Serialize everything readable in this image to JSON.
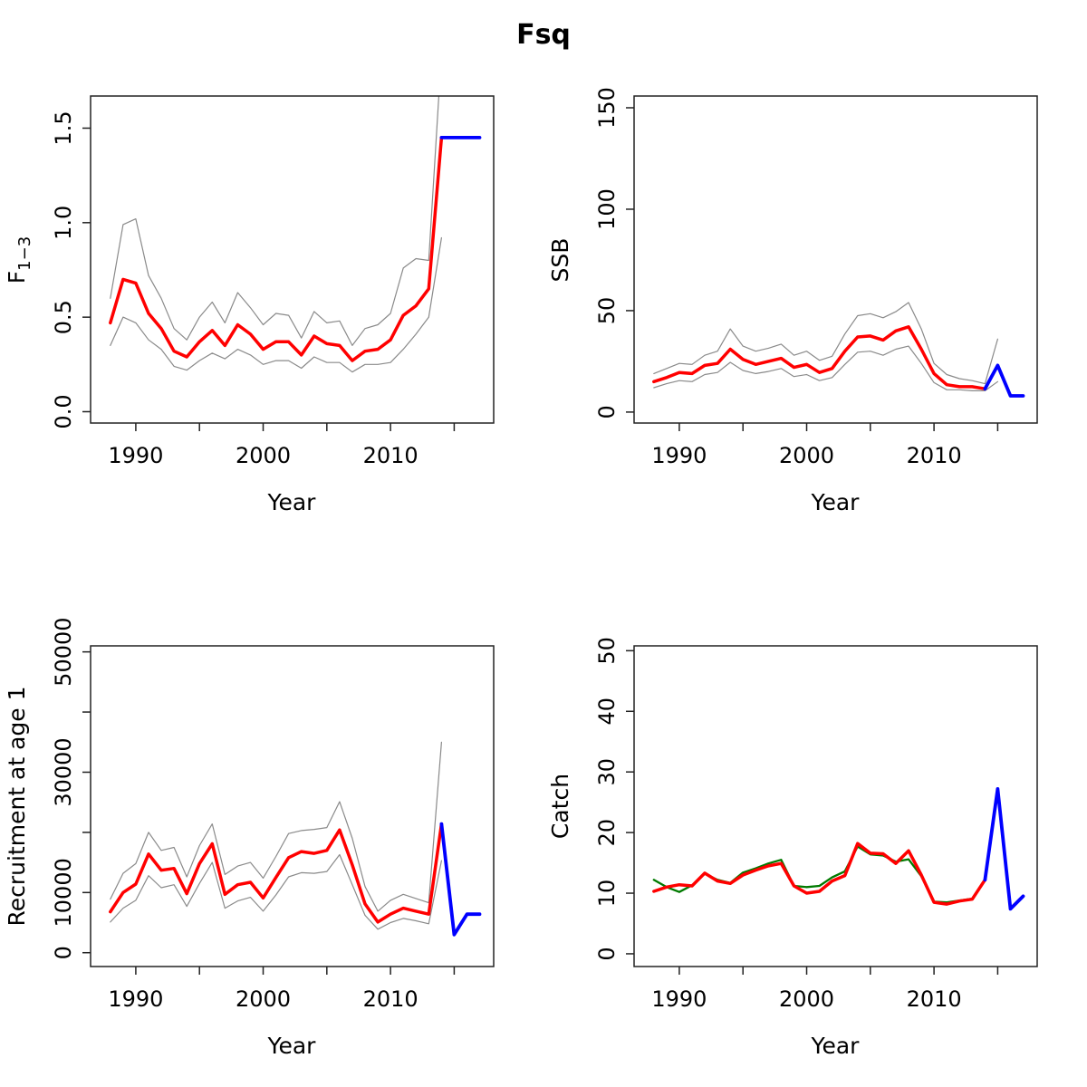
{
  "title": "Fsq",
  "colors": {
    "red": "#ff0000",
    "blue": "#0000ff",
    "green": "#007a00",
    "grey": "#8a8a8a",
    "axis": "#222222",
    "text": "#000000",
    "background": "#ffffff"
  },
  "years_hist": [
    1988,
    1989,
    1990,
    1991,
    1992,
    1993,
    1994,
    1995,
    1996,
    1997,
    1998,
    1999,
    2000,
    2001,
    2002,
    2003,
    2004,
    2005,
    2006,
    2007,
    2008,
    2009,
    2010,
    2011,
    2012,
    2013,
    2014
  ],
  "years_fwd": [
    2014,
    2015,
    2016,
    2017
  ],
  "years_ci_ssb": [
    1988,
    1989,
    1990,
    1991,
    1992,
    1993,
    1994,
    1995,
    1996,
    1997,
    1998,
    1999,
    2000,
    2001,
    2002,
    2003,
    2004,
    2005,
    2006,
    2007,
    2008,
    2009,
    2010,
    2011,
    2012,
    2013,
    2014,
    2015
  ],
  "chart_data": [
    {
      "type": "line",
      "panel": "top-left",
      "xlabel": "Year",
      "ylabel": {
        "main": "F",
        "sub": "1−3"
      },
      "xlim": [
        1986.45,
        2018.1
      ],
      "ylim": [
        -0.06,
        1.67
      ],
      "grid": false,
      "legend": "none",
      "xticks": [
        {
          "v": 1990,
          "label": "1990"
        },
        {
          "v": 1995,
          "label": ""
        },
        {
          "v": 2000,
          "label": "2000"
        },
        {
          "v": 2005,
          "label": ""
        },
        {
          "v": 2010,
          "label": "2010"
        },
        {
          "v": 2015,
          "label": ""
        }
      ],
      "yticks": [
        {
          "v": 0,
          "label": "0.0"
        },
        {
          "v": 0.5,
          "label": "0.5"
        },
        {
          "v": 1.0,
          "label": "1.0"
        },
        {
          "v": 1.5,
          "label": "1.5"
        }
      ],
      "series": [
        {
          "name": "upper-ci",
          "color": "grey",
          "width": 1.2,
          "years_ref": "years_hist",
          "values": [
            0.6,
            0.99,
            1.02,
            0.72,
            0.6,
            0.44,
            0.38,
            0.5,
            0.58,
            0.47,
            0.63,
            0.55,
            0.46,
            0.52,
            0.51,
            0.39,
            0.53,
            0.47,
            0.48,
            0.35,
            0.44,
            0.46,
            0.52,
            0.76,
            0.81,
            0.8,
            1.9
          ]
        },
        {
          "name": "lower-ci",
          "color": "grey",
          "width": 1.2,
          "years_ref": "years_hist",
          "values": [
            0.35,
            0.5,
            0.47,
            0.38,
            0.33,
            0.24,
            0.22,
            0.27,
            0.31,
            0.28,
            0.33,
            0.3,
            0.25,
            0.27,
            0.27,
            0.23,
            0.29,
            0.26,
            0.26,
            0.21,
            0.25,
            0.25,
            0.26,
            0.33,
            0.41,
            0.5,
            0.92
          ]
        },
        {
          "name": "estimate",
          "color": "red",
          "width": 3.5,
          "years_ref": "years_hist",
          "values": [
            0.47,
            0.7,
            0.68,
            0.52,
            0.44,
            0.32,
            0.29,
            0.37,
            0.43,
            0.35,
            0.46,
            0.41,
            0.33,
            0.37,
            0.37,
            0.3,
            0.4,
            0.36,
            0.35,
            0.27,
            0.32,
            0.33,
            0.38,
            0.51,
            0.56,
            0.65,
            1.45
          ]
        },
        {
          "name": "forecast",
          "color": "blue",
          "width": 3.8,
          "years_ref": "years_fwd",
          "values": [
            1.45,
            1.45,
            1.45,
            1.45
          ]
        }
      ]
    },
    {
      "type": "line",
      "panel": "top-right",
      "xlabel": "Year",
      "ylabel": {
        "main": "SSB",
        "sub": ""
      },
      "xlim": [
        1986.45,
        2018.1
      ],
      "ylim": [
        -5.4,
        155.8
      ],
      "grid": false,
      "legend": "none",
      "xticks": [
        {
          "v": 1990,
          "label": "1990"
        },
        {
          "v": 1995,
          "label": ""
        },
        {
          "v": 2000,
          "label": "2000"
        },
        {
          "v": 2005,
          "label": ""
        },
        {
          "v": 2010,
          "label": "2010"
        },
        {
          "v": 2015,
          "label": ""
        }
      ],
      "yticks": [
        {
          "v": 0,
          "label": "0"
        },
        {
          "v": 50,
          "label": "50"
        },
        {
          "v": 100,
          "label": "100"
        },
        {
          "v": 150,
          "label": "150"
        }
      ],
      "series": [
        {
          "name": "upper-ci",
          "color": "grey",
          "width": 1.2,
          "years_ref": "years_ci_ssb",
          "values": [
            19,
            21.5,
            24,
            23.5,
            28,
            30,
            41,
            32.5,
            30,
            31.5,
            33.5,
            28,
            30,
            25.5,
            27.5,
            38.5,
            47.5,
            48.5,
            46.5,
            49.5,
            54,
            41,
            24,
            18.5,
            16.5,
            15.5,
            14,
            36
          ]
        },
        {
          "name": "lower-ci",
          "color": "grey",
          "width": 1.2,
          "years_ref": "years_ci_ssb",
          "values": [
            12,
            14,
            15.5,
            15,
            18.5,
            19.5,
            24.5,
            20.5,
            19,
            20,
            21.5,
            17.5,
            18.5,
            15.5,
            17,
            23.5,
            29.5,
            30,
            28,
            31,
            32.5,
            24,
            14.5,
            11,
            11,
            10.5,
            10.5,
            15
          ]
        },
        {
          "name": "estimate",
          "color": "red",
          "width": 3.5,
          "years_ref": "years_hist",
          "values": [
            15,
            17,
            19.5,
            19,
            23,
            24,
            31,
            26,
            23.5,
            25,
            26.5,
            22,
            23.5,
            19.5,
            21.5,
            30,
            37,
            37.5,
            35.5,
            40,
            42,
            31,
            19,
            13.5,
            12.5,
            12.5,
            11.5
          ]
        },
        {
          "name": "forecast",
          "color": "blue",
          "width": 3.8,
          "years_ref": "years_fwd",
          "values": [
            11.5,
            23,
            8,
            8
          ]
        }
      ]
    },
    {
      "type": "line",
      "panel": "bottom-left",
      "xlabel": "Year",
      "ylabel": {
        "main": "Recruitment at age 1",
        "sub": ""
      },
      "xlim": [
        1986.45,
        2018.1
      ],
      "ylim": [
        -2300,
        51000
      ],
      "grid": false,
      "legend": "none",
      "xticks": [
        {
          "v": 1990,
          "label": "1990"
        },
        {
          "v": 1995,
          "label": ""
        },
        {
          "v": 2000,
          "label": "2000"
        },
        {
          "v": 2005,
          "label": ""
        },
        {
          "v": 2010,
          "label": "2010"
        },
        {
          "v": 2015,
          "label": ""
        }
      ],
      "yticks": [
        {
          "v": 0,
          "label": "0"
        },
        {
          "v": 10000,
          "label": "10000"
        },
        {
          "v": 20000,
          "label": ""
        },
        {
          "v": 30000,
          "label": "30000"
        },
        {
          "v": 40000,
          "label": ""
        },
        {
          "v": 50000,
          "label": "50000"
        }
      ],
      "series": [
        {
          "name": "upper-ci",
          "color": "grey",
          "width": 1.2,
          "years_ref": "years_hist",
          "values": [
            8900,
            13200,
            14800,
            20000,
            17000,
            17500,
            12600,
            17800,
            21400,
            13000,
            14400,
            15000,
            12400,
            16000,
            19800,
            20300,
            20500,
            20800,
            25100,
            19000,
            11000,
            6900,
            8700,
            9700,
            9000,
            8300,
            35000
          ]
        },
        {
          "name": "lower-ci",
          "color": "grey",
          "width": 1.2,
          "years_ref": "years_hist",
          "values": [
            5100,
            7400,
            8700,
            12800,
            10800,
            11300,
            7700,
            11500,
            15000,
            7400,
            8600,
            9200,
            6900,
            9600,
            12600,
            13300,
            13200,
            13500,
            16300,
            11300,
            6200,
            3900,
            5000,
            5700,
            5300,
            4800,
            15300
          ]
        },
        {
          "name": "estimate",
          "color": "red",
          "width": 3.5,
          "years_ref": "years_hist",
          "values": [
            6800,
            10000,
            11400,
            16400,
            13700,
            14000,
            9800,
            14800,
            18100,
            9700,
            11300,
            11700,
            9100,
            12500,
            15800,
            16800,
            16500,
            17000,
            20400,
            14600,
            8100,
            5100,
            6400,
            7400,
            6900,
            6400,
            21400
          ]
        },
        {
          "name": "forecast",
          "color": "blue",
          "width": 3.8,
          "years_ref": "years_fwd",
          "values": [
            21400,
            3000,
            6400,
            6400
          ]
        }
      ]
    },
    {
      "type": "line",
      "panel": "bottom-right",
      "xlabel": "Year",
      "ylabel": {
        "main": "Catch",
        "sub": ""
      },
      "xlim": [
        1986.45,
        2018.1
      ],
      "ylim": [
        -2.1,
        50.8
      ],
      "grid": false,
      "legend": "none",
      "xticks": [
        {
          "v": 1990,
          "label": "1990"
        },
        {
          "v": 1995,
          "label": ""
        },
        {
          "v": 2000,
          "label": "2000"
        },
        {
          "v": 2005,
          "label": ""
        },
        {
          "v": 2010,
          "label": "2010"
        },
        {
          "v": 2015,
          "label": ""
        }
      ],
      "yticks": [
        {
          "v": 0,
          "label": "0"
        },
        {
          "v": 10,
          "label": "10"
        },
        {
          "v": 20,
          "label": "20"
        },
        {
          "v": 30,
          "label": "30"
        },
        {
          "v": 40,
          "label": "40"
        },
        {
          "v": 50,
          "label": "50"
        }
      ],
      "series": [
        {
          "name": "observed",
          "color": "green",
          "width": 2.3,
          "years_ref": "years_hist",
          "values": [
            12.2,
            11.0,
            10.2,
            11.3,
            13.2,
            12.2,
            11.7,
            13.4,
            14.1,
            14.9,
            15.5,
            11.2,
            11.0,
            11.2,
            12.6,
            13.6,
            17.7,
            16.4,
            16.2,
            15.2,
            15.6,
            12.8,
            8.6,
            8.5,
            8.8,
            9.1,
            12.2
          ]
        },
        {
          "name": "estimate",
          "color": "red",
          "width": 3.5,
          "years_ref": "years_hist",
          "values": [
            10.3,
            11.0,
            11.4,
            11.2,
            13.3,
            12.0,
            11.6,
            13.0,
            13.8,
            14.5,
            14.9,
            11.2,
            10.0,
            10.3,
            12.0,
            12.9,
            18.2,
            16.6,
            16.5,
            14.9,
            17.0,
            13.0,
            8.5,
            8.2,
            8.7,
            9.0,
            12.2
          ]
        },
        {
          "name": "forecast",
          "color": "blue",
          "width": 3.8,
          "years_ref": "years_fwd",
          "values": [
            12.2,
            27.2,
            7.4,
            9.5
          ]
        }
      ]
    }
  ]
}
